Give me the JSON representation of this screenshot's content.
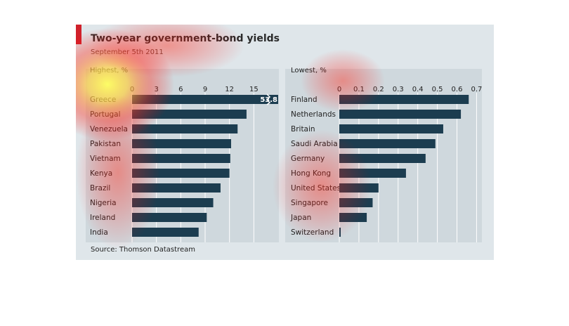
{
  "title": "Two-year government-bond yields",
  "subtitle": "September 5th 2011",
  "source": "Source: Thomson Datastream",
  "colors": {
    "bar": "#1c3d50",
    "panel_bg": "#dfe6ea",
    "accent_red": "#d0212b",
    "grid": "#ffffff"
  },
  "chart_data": [
    {
      "type": "bar",
      "orientation": "horizontal",
      "title": "Highest, %",
      "categories": [
        "Greece",
        "Portugal",
        "Venezuela",
        "Pakistan",
        "Vietnam",
        "Kenya",
        "Brazil",
        "Nigeria",
        "Ireland",
        "India"
      ],
      "values": [
        53.8,
        14.1,
        13.0,
        12.2,
        12.1,
        12.0,
        10.9,
        10.0,
        9.2,
        8.2
      ],
      "data_labels": {
        "Greece": "53.8"
      },
      "xticks": [
        0,
        3,
        6,
        9,
        12,
        15
      ],
      "xlim": [
        0,
        18
      ],
      "axis_break": true,
      "grid": true
    },
    {
      "type": "bar",
      "orientation": "horizontal",
      "title": "Lowest, %",
      "categories": [
        "Finland",
        "Netherlands",
        "Britain",
        "Saudi Arabia",
        "Germany",
        "Hong Kong",
        "United States",
        "Singapore",
        "Japan",
        "Switzerland"
      ],
      "values": [
        0.66,
        0.62,
        0.53,
        0.49,
        0.44,
        0.34,
        0.2,
        0.17,
        0.14,
        0.005
      ],
      "xticks": [
        "0",
        "0.1",
        "0.2",
        "0.3",
        "0.4",
        "0.5",
        "0.6",
        "0.7"
      ],
      "xlim": [
        0,
        0.72
      ],
      "grid": true
    }
  ]
}
